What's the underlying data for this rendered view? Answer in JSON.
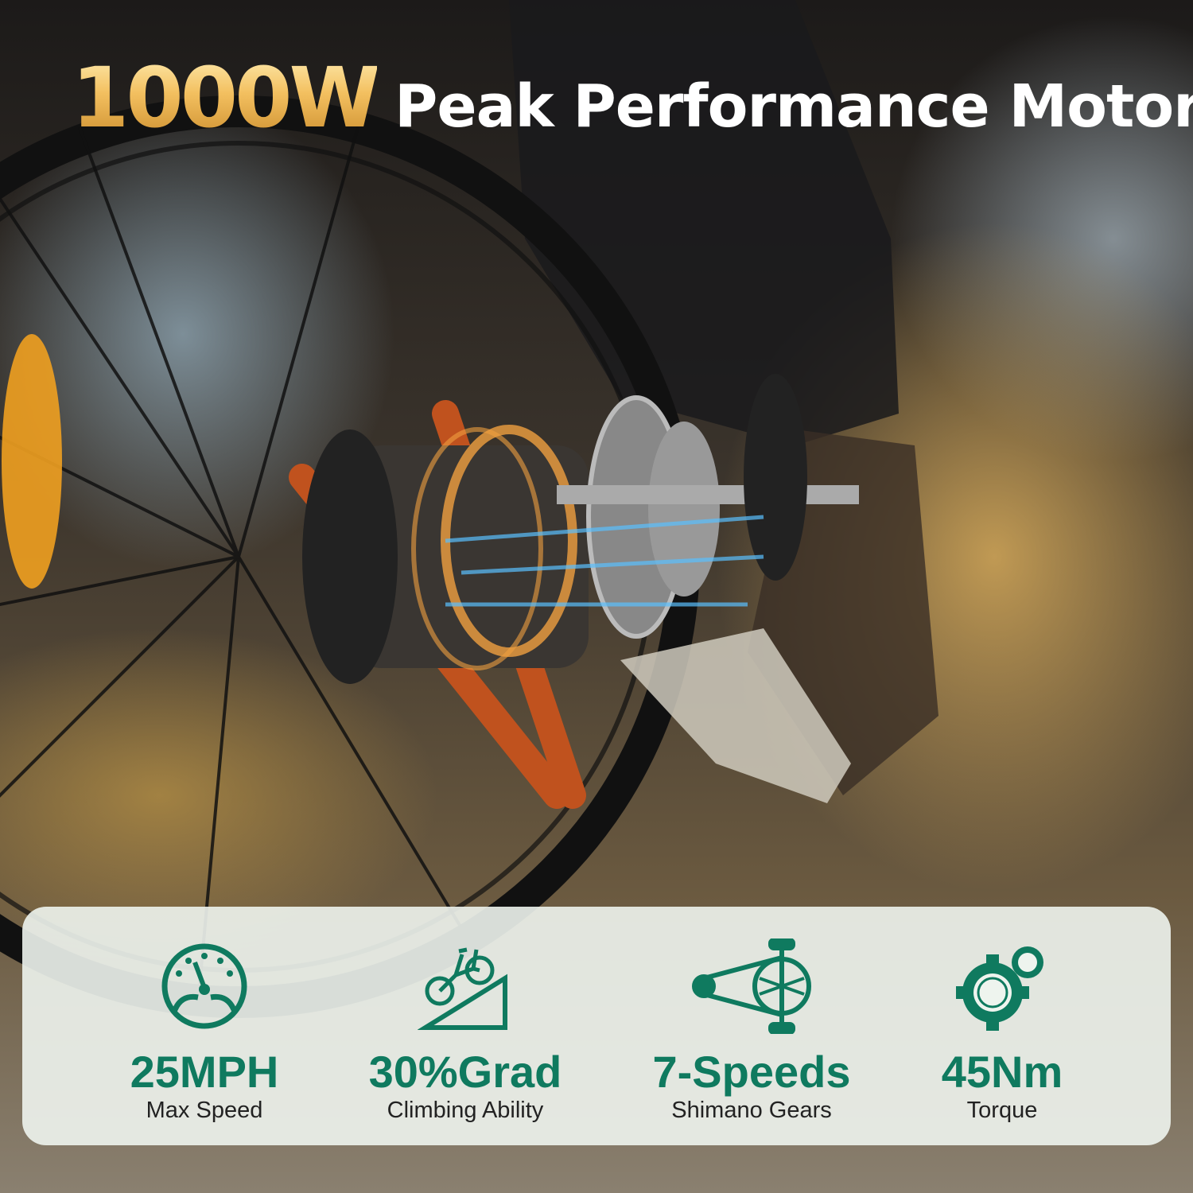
{
  "headline": {
    "highlight": "1000W",
    "text": "Peak Performance Motor"
  },
  "colors": {
    "accent_green": "#0f7a5f",
    "gold": "#f3c060"
  },
  "stats": [
    {
      "icon": "speedometer-icon",
      "value": "25MPH",
      "label": "Max Speed"
    },
    {
      "icon": "bike-uphill-icon",
      "value": "30%Grad",
      "label": "Climbing Ability"
    },
    {
      "icon": "chain-crank-icon",
      "value": "7-Speeds",
      "label": "Shimano Gears"
    },
    {
      "icon": "gears-icon",
      "value": "45Nm",
      "label": "Torque"
    }
  ]
}
